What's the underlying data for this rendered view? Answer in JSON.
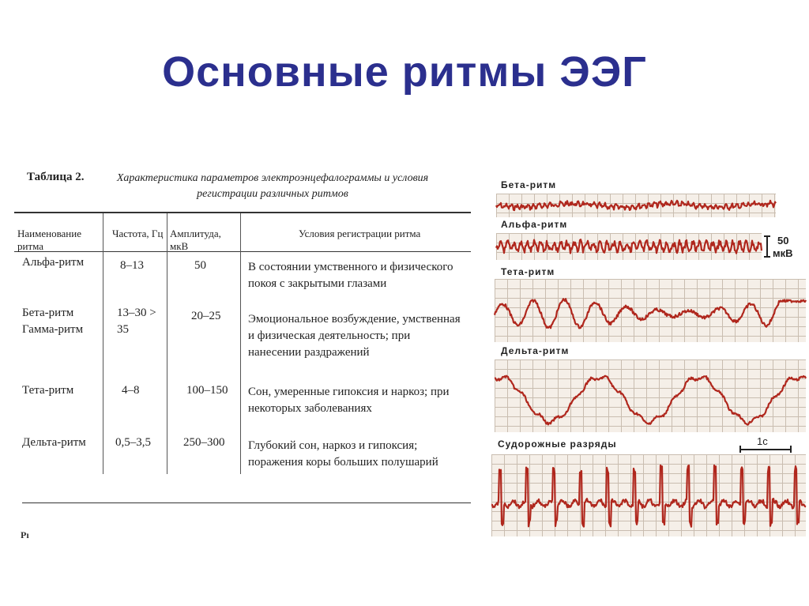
{
  "title": "Основные ритмы ЭЭГ",
  "table": {
    "label": "Таблица 2.",
    "caption": "Характеристика параметров электроэнцефалограммы и условия регистрации различных ритмов",
    "headers": [
      "Наименование ритма",
      "Частота, Гц",
      "Амплитуда, мкВ",
      "Условия регистрации ритма"
    ],
    "rows": [
      {
        "name": "Альфа-ритм",
        "freq": "8–13",
        "amp": "50",
        "cond": "В состоянии умственного и физического покоя с закрытыми глазами"
      },
      {
        "name": "Бета-ритм Гамма-ритм",
        "freq": "13–30 > 35",
        "amp": "20–25",
        "cond": "Эмоциональное возбуждение, умственная и физическая деятельность; при нанесении раздражений"
      },
      {
        "name": "Тета-ритм",
        "freq": "4–8",
        "amp": "100–150",
        "cond": "Сон, умеренные гипоксия и наркоз; при некоторых заболеваниях"
      },
      {
        "name": "Дельта-ритм",
        "freq": "0,5–3,5",
        "amp": "250–300",
        "cond": "Глубокий сон, наркоз и гипоксия; поражения коры больших полушарий"
      }
    ],
    "stray_mark": "Рı"
  },
  "eeg": {
    "labels": [
      "Бета-ритм",
      "Альфа-ритм",
      "Тета-ритм",
      "Дельта-ритм",
      "Судорожные разряды"
    ],
    "amplitude_scale": {
      "value": "50",
      "unit": "мкВ"
    },
    "time_scale": "1с",
    "trace_color": "#b0271d",
    "grid_color": "#c9bdb0"
  }
}
